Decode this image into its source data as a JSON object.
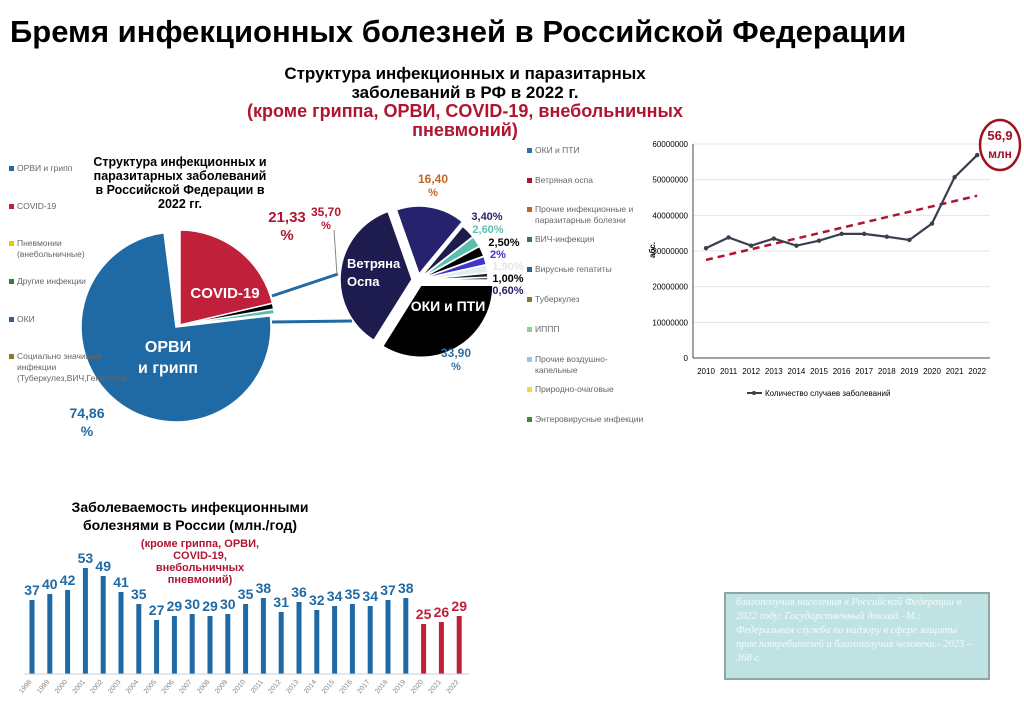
{
  "title": "Бремя инфекционных болезней в Российской Федерации",
  "subtitle": {
    "line1": "Структура инфекционных и паразитарных",
    "line2": "заболеваний в РФ в 2022 г.",
    "red": "(кроме гриппа, ОРВИ, COVID-19, внебольничных пневмоний)"
  },
  "citation": "благополучия населения в Российской Федерации в 2022 году: Государственный доклад.–М.: Федеральная служба по надзору в сфере защиты прав потребителей и благополучия человека.- 2023 – 368 с.",
  "chart_data": [
    {
      "type": "pie",
      "title": "Структура инфекционных и паразитарных заболеваний в Российской Федерации в 2022 гг.",
      "legend_position": "left",
      "legend": [
        {
          "name": "ОРВИ и грипп",
          "color": "#1f6aa5"
        },
        {
          "name": "COVID-19",
          "color": "#c0203a"
        },
        {
          "name": "Пневмонии (внебольничные)",
          "color": "#f2c400"
        },
        {
          "name": "Другие инфекции",
          "color": "#3a7d3a"
        },
        {
          "name": "ОКИ",
          "color": "#2f5f8f"
        },
        {
          "name": "Социально значимые инфекции (Туберкулез,ВИЧ,Гепатиты)",
          "color": "#8b7a2a"
        }
      ],
      "slices": [
        {
          "name": "COVID-19",
          "value": 21.33,
          "label": "21,33 %",
          "inner": "COVID-19",
          "color": "#c0203a"
        },
        {
          "name": "small1",
          "value": 1.0,
          "color": "#000000"
        },
        {
          "name": "small2",
          "value": 0.8,
          "color": "#5bbfb0"
        },
        {
          "name": "ОРВИ и грипп",
          "value": 74.86,
          "label": "74,86 %",
          "inner": "ОРВИ и грипп",
          "color": "#1f6aa5"
        }
      ]
    },
    {
      "type": "pie",
      "legend_position": "right",
      "legend": [
        {
          "name": "ОКИ и ПТИ",
          "color": "#2f6fa5"
        },
        {
          "name": "Ветряная оспа",
          "color": "#b01530"
        },
        {
          "name": "Прочие инфекционные и паразитарные болезни",
          "color": "#c0662a"
        },
        {
          "name": "ВИЧ-инфекция",
          "color": "#3a7d3a"
        },
        {
          "name": "Вирусные гепатиты",
          "color": "#2f5f8f"
        },
        {
          "name": "Туберкулез",
          "color": "#8b7a2a"
        },
        {
          "name": "ИППП",
          "color": "#8fd08f"
        },
        {
          "name": "Прочие воздушно-капельные",
          "color": "#9cc3e0"
        },
        {
          "name": "Природно-очаговые",
          "color": "#f2d83a"
        },
        {
          "name": "Энтеровирусные инфекции",
          "color": "#3a8a3a"
        }
      ],
      "slices": [
        {
          "value": 33.9,
          "label": "33,90 %",
          "inner": "ОКИ и ПТИ",
          "color": "#000000",
          "lc": "#2f6fa5"
        },
        {
          "value": 35.7,
          "label": "35,70 %",
          "inner": "Ветряная Оспа",
          "color": "#1e1b4f",
          "lc": "#b01530"
        },
        {
          "value": 16.4,
          "label": "16,40 %",
          "color": "#27226e",
          "lc": "#c0662a"
        },
        {
          "value": 3.4,
          "label": "3,40%",
          "color": "#1e1b4f",
          "lc": "#27226e"
        },
        {
          "value": 2.6,
          "label": "2,60%",
          "color": "#5bbfb0",
          "lc": "#5bbfb0"
        },
        {
          "value": 2.5,
          "label": "2,50%",
          "color": "#000000",
          "lc": "#000000"
        },
        {
          "value": 2,
          "label": "2%",
          "color": "#3f35c8",
          "lc": "#3f35c8"
        },
        {
          "value": 1.9,
          "label": "1,90%",
          "color": "#e0eef0",
          "lc": "#e6e6e6"
        },
        {
          "value": 1.0,
          "label": "1,00%",
          "color": "#222222",
          "lc": "#000000"
        },
        {
          "value": 0.6,
          "label": "0,60%",
          "color": "#1e1b4f",
          "lc": "#27226e"
        }
      ]
    },
    {
      "type": "line",
      "x": [
        2010,
        2011,
        2012,
        2013,
        2014,
        2015,
        2016,
        2017,
        2018,
        2019,
        2020,
        2021,
        2022
      ],
      "series": [
        {
          "name": "Количество случаев заболеваний",
          "values": [
            30800000,
            33800000,
            31500000,
            33500000,
            31500000,
            32900000,
            34800000,
            34800000,
            34000000,
            33100000,
            37700000,
            50700000,
            56900000
          ],
          "color": "#3a3f4f"
        }
      ],
      "trendline": {
        "from": 27500000,
        "to": 45500000,
        "color": "#b01530"
      },
      "ylabel": "абс.",
      "ylim": [
        0,
        60000000
      ],
      "yticks": [
        "0",
        "10000000",
        "20000000",
        "30000000",
        "40000000",
        "50000000",
        "60000000"
      ],
      "annotation": {
        "line1": "56,9",
        "line2": "млн"
      },
      "legend_position": "bottom",
      "grid": true
    },
    {
      "type": "bar",
      "title": "Заболеваемость инфекционными болезнями в России (млн./год)",
      "note": "(кроме гриппа, ОРВИ, COVID-19, внебольничных пневмоний)",
      "categories": [
        "1998",
        "1999",
        "2000",
        "2001",
        "2002",
        "2003",
        "2004",
        "2005",
        "2006",
        "2007",
        "2008",
        "2009",
        "2010",
        "2011",
        "2012",
        "2013",
        "2014",
        "2015",
        "2016",
        "2017",
        "2018",
        "2019",
        "2020",
        "2021",
        "2022"
      ],
      "values": [
        37,
        40,
        42,
        53,
        49,
        41,
        35,
        27,
        29,
        30,
        29,
        30,
        35,
        38,
        31,
        36,
        32,
        34,
        35,
        34,
        37,
        38,
        25,
        26,
        29
      ],
      "colors": {
        "normal": "#1f6aa5",
        "highlight": "#c0203a"
      },
      "highlight_from": "2020"
    }
  ]
}
